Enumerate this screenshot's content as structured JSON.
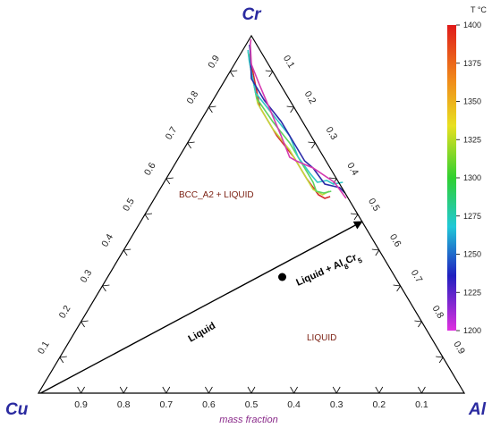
{
  "chart_data": {
    "type": "ternary-contour",
    "vertices": {
      "top": "Cr",
      "left": "Cu",
      "right": "Al"
    },
    "xlabel": "mass fraction",
    "ticks": [
      "0.1",
      "0.2",
      "0.3",
      "0.4",
      "0.5",
      "0.6",
      "0.7",
      "0.8",
      "0.9"
    ],
    "regions": {
      "upper": "BCC_A2 + LIQUID",
      "lower": "LIQUID"
    },
    "annotations": {
      "line_label": "Liquid",
      "phase_label_main": "Liquid + Al",
      "phase_sub1": "8",
      "phase_mid": "Cr",
      "phase_sub2": "5"
    },
    "colorbar": {
      "title": "T °C",
      "ticks": [
        "1400",
        "1375",
        "1350",
        "1325",
        "1300",
        "1275",
        "1250",
        "1225",
        "1200"
      ],
      "min": 1200,
      "max": 1400
    },
    "arrow": {
      "from": [
        0.005,
        0.995
      ],
      "to": [
        0.52,
        0.48
      ]
    },
    "marked_point": [
      0.41,
      0.59
    ],
    "series": [
      {
        "T": 1400,
        "color": "#d42a2a",
        "points": [
          [
            0.03,
            0.935
          ],
          [
            0.06,
            0.89
          ],
          [
            0.12,
            0.8
          ],
          [
            0.2,
            0.72
          ],
          [
            0.27,
            0.66
          ],
          [
            0.33,
            0.6
          ],
          [
            0.38,
            0.555
          ],
          [
            0.4,
            0.545
          ],
          [
            0.41,
            0.55
          ]
        ]
      },
      {
        "T": 1350,
        "color": "#c4d93a",
        "points": [
          [
            0.02,
            0.95
          ],
          [
            0.05,
            0.9
          ],
          [
            0.11,
            0.81
          ],
          [
            0.18,
            0.74
          ],
          [
            0.25,
            0.68
          ],
          [
            0.31,
            0.62
          ],
          [
            0.36,
            0.57
          ],
          [
            0.39,
            0.555
          ],
          [
            0.4,
            0.565
          ]
        ]
      },
      {
        "T": 1325,
        "color": "#5fd35f",
        "points": [
          [
            0.015,
            0.955
          ],
          [
            0.04,
            0.915
          ],
          [
            0.1,
            0.825
          ],
          [
            0.17,
            0.76
          ],
          [
            0.24,
            0.7
          ],
          [
            0.3,
            0.64
          ],
          [
            0.35,
            0.59
          ],
          [
            0.37,
            0.565
          ],
          [
            0.39,
            0.56
          ],
          [
            0.405,
            0.565
          ]
        ]
      },
      {
        "T": 1275,
        "color": "#33c8c8",
        "points": [
          [
            0.012,
            0.96
          ],
          [
            0.03,
            0.93
          ],
          [
            0.09,
            0.84
          ],
          [
            0.16,
            0.78
          ],
          [
            0.23,
            0.72
          ],
          [
            0.28,
            0.66
          ],
          [
            0.33,
            0.615
          ],
          [
            0.36,
            0.59
          ],
          [
            0.38,
            0.595
          ],
          [
            0.4,
            0.585
          ],
          [
            0.42,
            0.59
          ]
        ]
      },
      {
        "T": 1250,
        "color": "#2b2ba8",
        "points": [
          [
            0.008,
            0.975
          ],
          [
            0.02,
            0.955
          ],
          [
            0.06,
            0.88
          ],
          [
            0.12,
            0.82
          ],
          [
            0.19,
            0.76
          ],
          [
            0.25,
            0.7
          ],
          [
            0.3,
            0.65
          ],
          [
            0.33,
            0.63
          ],
          [
            0.38,
            0.585
          ],
          [
            0.42,
            0.575
          ],
          [
            0.44,
            0.56
          ]
        ]
      },
      {
        "T": 1200,
        "color": "#d43ab0",
        "points": [
          [
            0.004,
            0.99
          ],
          [
            0.01,
            0.975
          ],
          [
            0.04,
            0.92
          ],
          [
            0.09,
            0.86
          ],
          [
            0.15,
            0.79
          ],
          [
            0.21,
            0.72
          ],
          [
            0.26,
            0.66
          ],
          [
            0.28,
            0.65
          ],
          [
            0.33,
            0.63
          ],
          [
            0.4,
            0.59
          ],
          [
            0.45,
            0.545
          ]
        ]
      }
    ]
  }
}
